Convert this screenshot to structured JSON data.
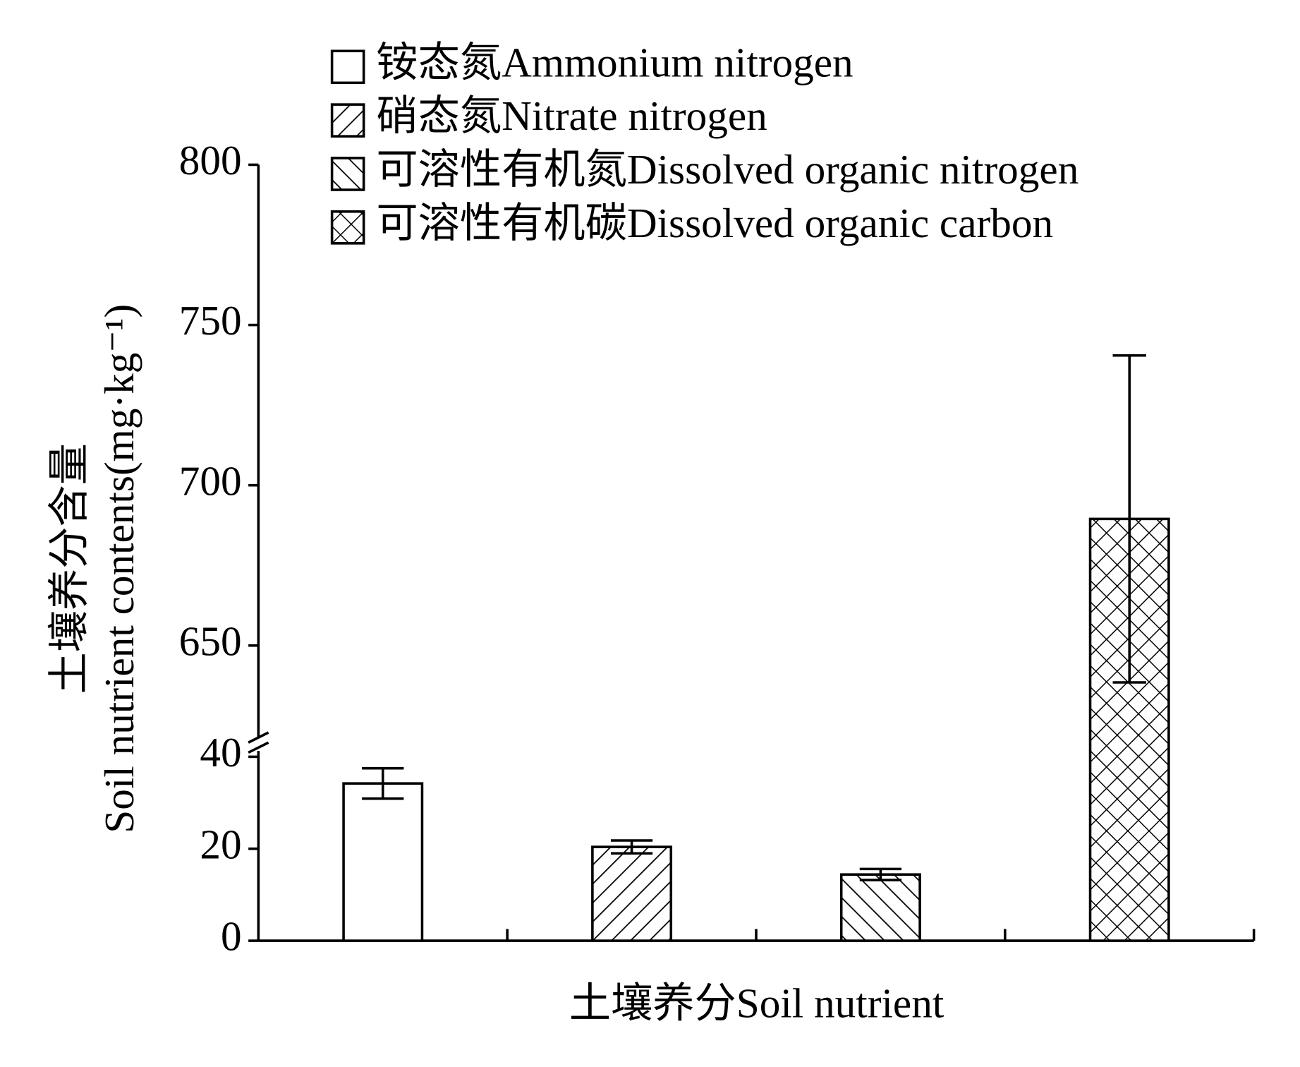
{
  "chart_data": {
    "type": "bar",
    "categories": [
      "铵态氮Ammonium nitrogen",
      "硝态氮Nitrate nitrogen",
      "可溶性有机氮Dissolved organic nitrogen",
      "可溶性有机碳Dissolved organic carbon"
    ],
    "values": [
      34.2,
      20.4,
      14.4,
      689.5
    ],
    "errors": [
      3.3,
      1.4,
      1.2,
      51
    ],
    "patterns": [
      "none",
      "diagonal-up",
      "diagonal-down",
      "crosshatch"
    ],
    "color": "#000000",
    "x_label": "土壤养分Soil nutrient",
    "y_label": [
      "土壤养分含量",
      "Soil nutrient contents(mg·kg⁻¹)"
    ],
    "y_segments": [
      {
        "ylim": [
          0,
          40
        ],
        "yticks": [
          0,
          20,
          40
        ]
      },
      {
        "ylim": [
          620,
          800
        ],
        "yticks": [
          650,
          700,
          750,
          800
        ]
      }
    ],
    "grid": false
  }
}
